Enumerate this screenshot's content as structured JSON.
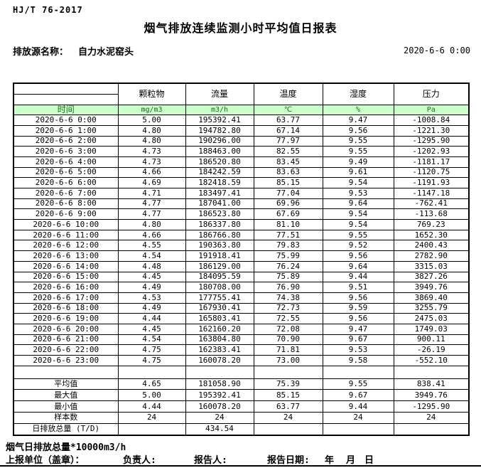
{
  "page": {
    "standard_code": "HJ/T  76-2017",
    "title": "烟气排放连续监测小时平均值日报表",
    "source_label": "排放源名称：",
    "source_name": "自力水泥窑头",
    "datetime": "2020-6-6 0:00"
  },
  "table": {
    "time_header": "时间",
    "columns": [
      {
        "label": "颗粒物",
        "unit": "mg/m3"
      },
      {
        "label": "流量",
        "unit": "m3/h"
      },
      {
        "label": "温度",
        "unit": "℃"
      },
      {
        "label": "湿度",
        "unit": "%"
      },
      {
        "label": "压力",
        "unit": "Pa"
      }
    ],
    "rows": [
      {
        "time": "2020-6-6 0:00",
        "values": [
          "5.00",
          "195392.41",
          "63.77",
          "9.47",
          "-1008.84"
        ]
      },
      {
        "time": "2020-6-6 1:00",
        "values": [
          "4.80",
          "194782.80",
          "67.14",
          "9.56",
          "-1221.30"
        ]
      },
      {
        "time": "2020-6-6 2:00",
        "values": [
          "4.80",
          "190296.00",
          "77.97",
          "9.55",
          "-1295.90"
        ]
      },
      {
        "time": "2020-6-6 3:00",
        "values": [
          "4.73",
          "188463.00",
          "82.55",
          "9.55",
          "-1202.93"
        ]
      },
      {
        "time": "2020-6-6 4:00",
        "values": [
          "4.73",
          "186520.80",
          "83.45",
          "9.49",
          "-1181.17"
        ]
      },
      {
        "time": "2020-6-6 5:00",
        "values": [
          "4.66",
          "184242.59",
          "83.63",
          "9.61",
          "-1120.75"
        ]
      },
      {
        "time": "2020-6-6 6:00",
        "values": [
          "4.69",
          "182418.59",
          "85.15",
          "9.54",
          "-1191.93"
        ]
      },
      {
        "time": "2020-6-6 7:00",
        "values": [
          "4.71",
          "183497.41",
          "77.04",
          "9.53",
          "-1147.18"
        ]
      },
      {
        "time": "2020-6-6 8:00",
        "values": [
          "4.77",
          "187041.00",
          "69.96",
          "9.64",
          "-762.41"
        ]
      },
      {
        "time": "2020-6-6 9:00",
        "values": [
          "4.77",
          "186523.80",
          "67.69",
          "9.54",
          "-113.68"
        ]
      },
      {
        "time": "2020-6-6 10:00",
        "values": [
          "4.80",
          "186337.80",
          "81.10",
          "9.54",
          "769.23"
        ]
      },
      {
        "time": "2020-6-6 11:00",
        "values": [
          "4.66",
          "186766.80",
          "77.51",
          "9.55",
          "1652.30"
        ]
      },
      {
        "time": "2020-6-6 12:00",
        "values": [
          "4.55",
          "190363.80",
          "79.83",
          "9.52",
          "2400.43"
        ]
      },
      {
        "time": "2020-6-6 13:00",
        "values": [
          "4.54",
          "191918.41",
          "75.99",
          "9.56",
          "2782.90"
        ]
      },
      {
        "time": "2020-6-6 14:00",
        "values": [
          "4.48",
          "186129.00",
          "76.24",
          "9.64",
          "3315.03"
        ]
      },
      {
        "time": "2020-6-6 15:00",
        "values": [
          "4.45",
          "184095.59",
          "75.89",
          "9.44",
          "3827.26"
        ]
      },
      {
        "time": "2020-6-6 16:00",
        "values": [
          "4.49",
          "180708.00",
          "76.90",
          "9.51",
          "3949.76"
        ]
      },
      {
        "time": "2020-6-6 17:00",
        "values": [
          "4.53",
          "177755.41",
          "74.38",
          "9.56",
          "3869.40"
        ]
      },
      {
        "time": "2020-6-6 18:00",
        "values": [
          "4.49",
          "167930.41",
          "72.73",
          "9.59",
          "3255.79"
        ]
      },
      {
        "time": "2020-6-6 19:00",
        "values": [
          "4.44",
          "165803.41",
          "72.55",
          "9.56",
          "2475.03"
        ]
      },
      {
        "time": "2020-6-6 20:00",
        "values": [
          "4.45",
          "162160.20",
          "72.08",
          "9.47",
          "1749.03"
        ]
      },
      {
        "time": "2020-6-6 21:00",
        "values": [
          "4.54",
          "163804.80",
          "70.90",
          "9.67",
          "900.11"
        ]
      },
      {
        "time": "2020-6-6 22:00",
        "values": [
          "4.75",
          "162383.41",
          "71.81",
          "9.53",
          "-26.19"
        ]
      },
      {
        "time": "2020-6-6 23:00",
        "values": [
          "4.75",
          "160078.20",
          "73.00",
          "9.58",
          "-552.10"
        ]
      }
    ],
    "summary": [
      {
        "label": "平均值",
        "values": [
          "4.65",
          "181058.90",
          "75.39",
          "9.55",
          "838.41"
        ]
      },
      {
        "label": "最大值",
        "values": [
          "5.00",
          "195392.41",
          "85.15",
          "9.67",
          "3949.76"
        ]
      },
      {
        "label": "最小值",
        "values": [
          "4.44",
          "160078.20",
          "63.77",
          "9.44",
          "-1295.90"
        ]
      },
      {
        "label": "样本数",
        "values": [
          "24",
          "24",
          "24",
          "24",
          "24"
        ]
      },
      {
        "label": "日排放总量 (T/D)",
        "values": [
          "",
          "434.54",
          "",
          "",
          ""
        ]
      }
    ]
  },
  "footer": {
    "note": "烟气日排放总量*10000m3/h",
    "report_unit_label": "上报单位（盖章）：",
    "responsible_label": "负责人:",
    "reporter_label": "报告人:",
    "report_date_label": "报告日期:",
    "year_label": "年",
    "month_label": "月",
    "day_label": "日"
  },
  "colors": {
    "unit_row_bg": "#ccffcc",
    "unit_row_text": "#1f6b1f",
    "border": "#000000"
  }
}
